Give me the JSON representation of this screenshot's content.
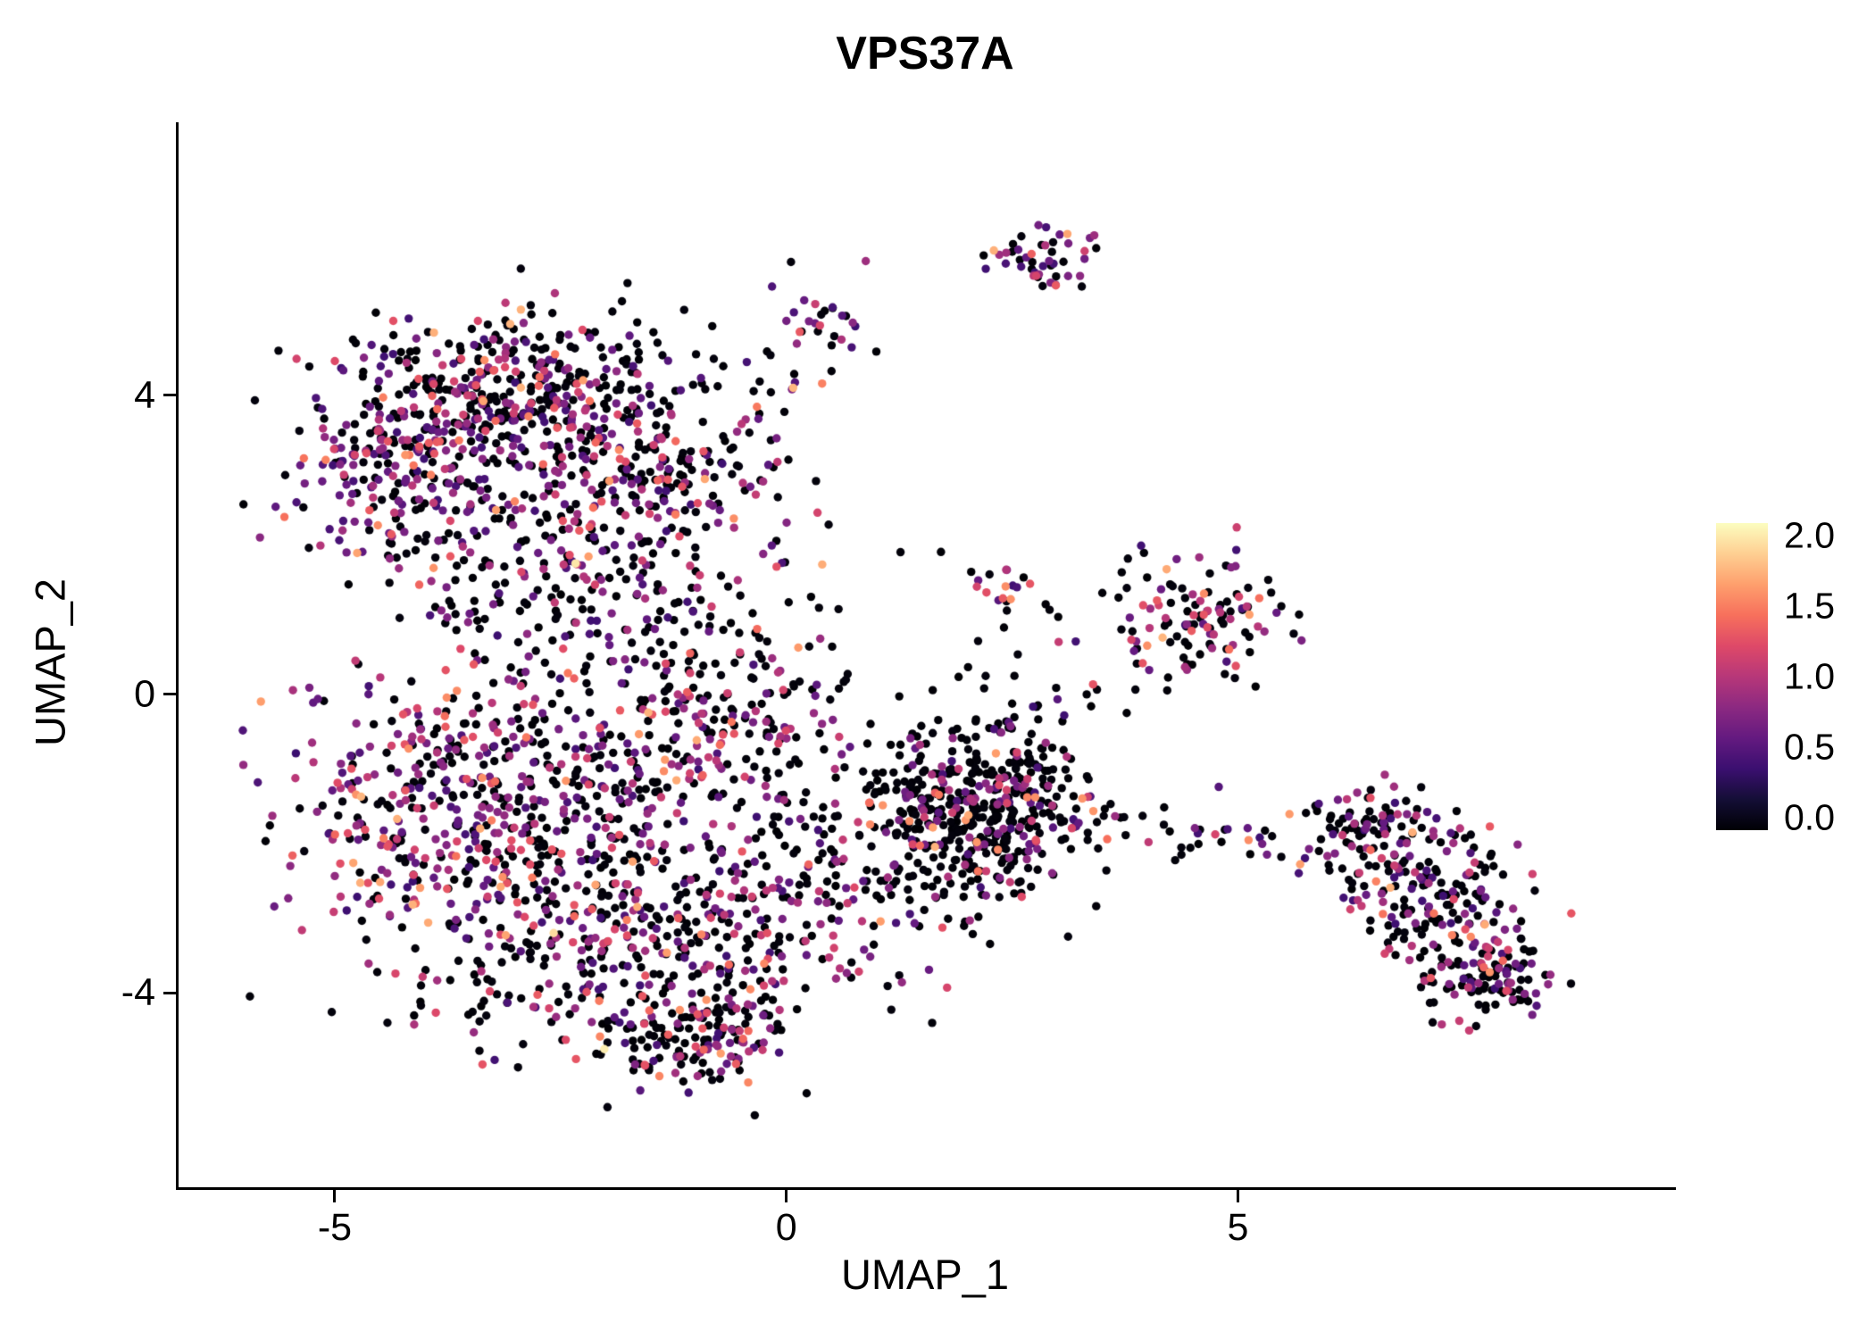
{
  "chart_data": {
    "type": "scatter",
    "title": "VPS37A",
    "xlabel": "UMAP_1",
    "ylabel": "UMAP_2",
    "xlim": [
      -6.73,
      9.8
    ],
    "ylim": [
      -6.6,
      7.62
    ],
    "xticks": [
      {
        "label": "-5",
        "value": -5
      },
      {
        "label": "0",
        "value": 0
      },
      {
        "label": "5",
        "value": 5
      }
    ],
    "yticks": [
      {
        "label": "4",
        "value": 4
      },
      {
        "label": "0",
        "value": 0
      },
      {
        "label": "-4",
        "value": -4
      }
    ],
    "grid": false,
    "legend_position": "right",
    "background_color": "#ffffff",
    "axis_color": "#000000",
    "text_color": "#000000",
    "point_radius_px": 4.7,
    "seed": 20240613,
    "colorbar": {
      "min": 0,
      "max": 2,
      "colormap": "magma",
      "ticks": [
        {
          "label": "2.0",
          "value": 2.0
        },
        {
          "label": "1.5",
          "value": 1.5
        },
        {
          "label": "1.0",
          "value": 1.0
        },
        {
          "label": "0.5",
          "value": 0.5
        },
        {
          "label": "0.0",
          "value": 0.0
        }
      ],
      "stops": [
        {
          "t": 0.0,
          "color": "#000004"
        },
        {
          "t": 0.1,
          "color": "#140e36"
        },
        {
          "t": 0.2,
          "color": "#3b0f70"
        },
        {
          "t": 0.3,
          "color": "#641a80"
        },
        {
          "t": 0.4,
          "color": "#8c2981"
        },
        {
          "t": 0.5,
          "color": "#b73779"
        },
        {
          "t": 0.6,
          "color": "#de4968"
        },
        {
          "t": 0.7,
          "color": "#f7705c"
        },
        {
          "t": 0.8,
          "color": "#fe9f6d"
        },
        {
          "t": 0.9,
          "color": "#fecf92"
        },
        {
          "t": 1.0,
          "color": "#fcfdbf"
        }
      ]
    },
    "expression_buckets": {
      "zero": [
        0.0,
        0.04
      ],
      "low": [
        0.4,
        0.9
      ],
      "mid": [
        0.9,
        1.3
      ],
      "high": [
        1.3,
        1.7
      ],
      "vhigh": [
        1.85,
        2.0
      ]
    },
    "expr_profiles": {
      "mixed": {
        "weights": [
          0.555,
          0.27,
          0.12,
          0.0538,
          0.0012
        ]
      },
      "purple": {
        "weights": [
          0.36,
          0.41,
          0.17,
          0.06,
          0
        ]
      },
      "black": {
        "weights": [
          0.78,
          0.13,
          0.06,
          0.03,
          0
        ]
      },
      "mixed2": {
        "weights": [
          0.44,
          0.3,
          0.17,
          0.09,
          0
        ]
      },
      "mixed3": {
        "weights": [
          0.6,
          0.25,
          0.11,
          0.04,
          0
        ]
      },
      "hot": {
        "weights": [
          0.28,
          0.22,
          0.25,
          0.25,
          0
        ]
      }
    },
    "clusters": [
      {
        "name": "topleft-core",
        "cx": -2.9,
        "cy": 4.0,
        "sx": 0.95,
        "sy": 0.6,
        "n": 430,
        "expr": "mixed"
      },
      {
        "name": "topleft-west",
        "cx": -4.35,
        "cy": 3.1,
        "sx": 0.6,
        "sy": 0.5,
        "n": 170,
        "expr": "purple"
      },
      {
        "name": "topleft-east",
        "cx": -1.55,
        "cy": 2.95,
        "sx": 0.75,
        "sy": 0.6,
        "n": 210,
        "expr": "mixed"
      },
      {
        "name": "topleft-south-fringe",
        "cx": -3.3,
        "cy": 2.1,
        "sx": 1.15,
        "sy": 0.4,
        "n": 100,
        "expr": "mixed"
      },
      {
        "name": "upper-gap-field",
        "cx": -1.9,
        "cy": 1.2,
        "sx": 1.3,
        "sy": 0.55,
        "n": 150,
        "expr": "mixed"
      },
      {
        "name": "trail-to-top",
        "cx": 0.45,
        "cy": 4.95,
        "sx": 0.3,
        "sy": 0.25,
        "n": 26,
        "expr": "purple"
      },
      {
        "name": "trail-sparse",
        "cx": -0.2,
        "cy": 4.15,
        "sx": 0.55,
        "sy": 0.45,
        "n": 14,
        "expr": "black"
      },
      {
        "name": "top-small",
        "cx": 2.85,
        "cy": 5.85,
        "sx": 0.3,
        "sy": 0.24,
        "n": 48,
        "expr": "purple"
      },
      {
        "name": "center-west",
        "cx": -3.95,
        "cy": -1.6,
        "sx": 0.8,
        "sy": 1.05,
        "n": 330,
        "expr": "purple"
      },
      {
        "name": "center-mid",
        "cx": -2.25,
        "cy": -1.3,
        "sx": 1.0,
        "sy": 0.95,
        "n": 340,
        "expr": "mixed"
      },
      {
        "name": "center-south",
        "cx": -1.7,
        "cy": -3.4,
        "sx": 1.15,
        "sy": 0.75,
        "n": 360,
        "expr": "mixed"
      },
      {
        "name": "center-south-tail",
        "cx": -1.15,
        "cy": -4.65,
        "sx": 0.55,
        "sy": 0.33,
        "n": 120,
        "expr": "mixed"
      },
      {
        "name": "center-east",
        "cx": -0.5,
        "cy": -0.25,
        "sx": 0.7,
        "sy": 0.6,
        "n": 150,
        "expr": "mixed"
      },
      {
        "name": "center-southeast",
        "cx": 0.2,
        "cy": -2.7,
        "sx": 0.6,
        "sy": 0.7,
        "n": 110,
        "expr": "mixed"
      },
      {
        "name": "right-core",
        "cx": 1.8,
        "cy": -1.6,
        "sx": 0.75,
        "sy": 0.72,
        "n": 390,
        "expr": "black"
      },
      {
        "name": "right-core-east",
        "cx": 2.55,
        "cy": -1.3,
        "sx": 0.38,
        "sy": 0.55,
        "n": 150,
        "expr": "black"
      },
      {
        "name": "mid-right-upper",
        "cx": 4.6,
        "cy": 1.0,
        "sx": 0.45,
        "sy": 0.38,
        "n": 110,
        "expr": "mixed2"
      },
      {
        "name": "mid-right-small",
        "cx": 2.35,
        "cy": 1.3,
        "sx": 0.26,
        "sy": 0.18,
        "n": 18,
        "expr": "hot"
      },
      {
        "name": "mid-right-scatter",
        "cx": 3.4,
        "cy": 0.6,
        "sx": 0.7,
        "sy": 0.55,
        "n": 22,
        "expr": "black"
      },
      {
        "name": "connector",
        "cx": 3.9,
        "cy": -1.85,
        "sx": 0.8,
        "sy": 0.22,
        "n": 26,
        "expr": "mixed2"
      },
      {
        "name": "fareast-a",
        "cx": 6.6,
        "cy": -2.0,
        "sx": 0.5,
        "sy": 0.33,
        "n": 130,
        "expr": "mixed3"
      },
      {
        "name": "fareast-b",
        "cx": 7.3,
        "cy": -2.9,
        "sx": 0.45,
        "sy": 0.45,
        "n": 130,
        "expr": "mixed3"
      },
      {
        "name": "fareast-c",
        "cx": 7.8,
        "cy": -3.8,
        "sx": 0.4,
        "sy": 0.27,
        "n": 110,
        "expr": "mixed3"
      },
      {
        "name": "fareast-conn",
        "cx": 5.05,
        "cy": -1.9,
        "sx": 0.3,
        "sy": 0.12,
        "n": 12,
        "expr": "mixed3"
      }
    ]
  }
}
